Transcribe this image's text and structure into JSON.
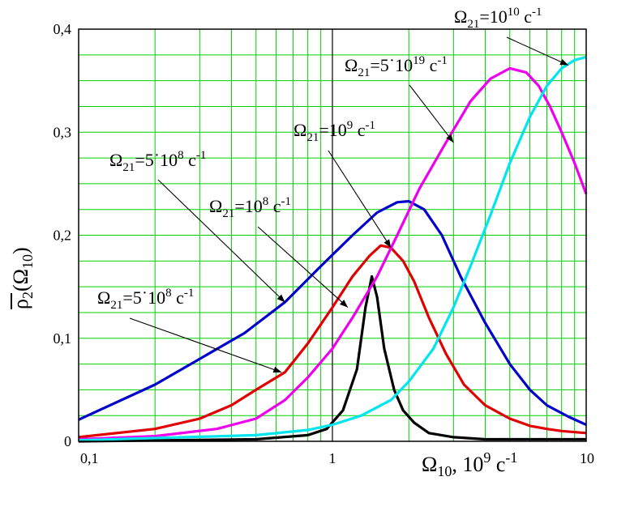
{
  "chart_data": {
    "type": "line",
    "x_scale": "log",
    "xlim": [
      0.1,
      10
    ],
    "ylim": [
      0,
      0.4
    ],
    "grid": true,
    "xlabel": {
      "main": "Ω",
      "sub": "10",
      "tail": ", 10",
      "sup": "9",
      "unit": " с",
      "unit_sup": "-1"
    },
    "ylabel": {
      "main": "ρ",
      "sub": "2",
      "arg_open": "(Ω",
      "arg_sub": "10",
      "arg_close": ")"
    },
    "x_tick_labels": [
      {
        "value": 0.1,
        "label": "0,1"
      },
      {
        "value": 1,
        "label": "1"
      },
      {
        "value": 10,
        "label": "10"
      }
    ],
    "y_tick_labels": [
      {
        "value": 0,
        "label": "0"
      },
      {
        "value": 0.1,
        "label": "0,1"
      },
      {
        "value": 0.2,
        "label": "0,2"
      },
      {
        "value": 0.3,
        "label": "0,3"
      },
      {
        "value": 0.4,
        "label": "0,4"
      }
    ],
    "series": [
      {
        "color": "#000000",
        "x": [
          0.1,
          0.5,
          0.8,
          0.95,
          1.1,
          1.25,
          1.35,
          1.43,
          1.5,
          1.6,
          1.75,
          1.9,
          2.1,
          2.4,
          3.0,
          4.0,
          10
        ],
        "y": [
          0,
          0.002,
          0.006,
          0.012,
          0.03,
          0.07,
          0.13,
          0.16,
          0.14,
          0.09,
          0.05,
          0.03,
          0.018,
          0.008,
          0.004,
          0.002,
          0.002
        ]
      },
      {
        "color": "#e00000",
        "x": [
          0.1,
          0.2,
          0.3,
          0.4,
          0.5,
          0.65,
          0.8,
          1.0,
          1.2,
          1.4,
          1.55,
          1.7,
          1.9,
          2.1,
          2.4,
          2.8,
          3.3,
          4.0,
          5.0,
          6.0,
          7.0,
          8.0,
          10
        ],
        "y": [
          0.004,
          0.012,
          0.022,
          0.035,
          0.05,
          0.067,
          0.095,
          0.13,
          0.16,
          0.18,
          0.19,
          0.188,
          0.175,
          0.155,
          0.12,
          0.085,
          0.055,
          0.035,
          0.022,
          0.015,
          0.012,
          0.01,
          0.008
        ]
      },
      {
        "color": "#0000cc",
        "x": [
          0.1,
          0.2,
          0.3,
          0.45,
          0.65,
          0.9,
          1.2,
          1.5,
          1.8,
          2.0,
          2.3,
          2.7,
          3.2,
          4.0,
          5.0,
          6.0,
          7.0,
          8.5,
          10
        ],
        "y": [
          0.021,
          0.055,
          0.08,
          0.105,
          0.135,
          0.17,
          0.2,
          0.222,
          0.232,
          0.233,
          0.225,
          0.2,
          0.16,
          0.115,
          0.075,
          0.05,
          0.035,
          0.024,
          0.016
        ]
      },
      {
        "color": "#ee00ee",
        "x": [
          0.1,
          0.2,
          0.35,
          0.5,
          0.65,
          0.8,
          1.0,
          1.2,
          1.5,
          1.8,
          2.2,
          2.8,
          3.5,
          4.2,
          5.0,
          5.8,
          6.5,
          7.2,
          8.0,
          9.0,
          10
        ],
        "y": [
          0.002,
          0.005,
          0.012,
          0.022,
          0.04,
          0.062,
          0.09,
          0.12,
          0.16,
          0.2,
          0.245,
          0.29,
          0.33,
          0.352,
          0.362,
          0.358,
          0.345,
          0.325,
          0.3,
          0.27,
          0.24
        ]
      },
      {
        "color": "#00e5ee",
        "x": [
          0.1,
          0.5,
          0.8,
          1.0,
          1.3,
          1.7,
          2.0,
          2.5,
          3.0,
          3.5,
          4.2,
          5.0,
          6.0,
          7.0,
          8.0,
          9.0,
          10
        ],
        "y": [
          0.001,
          0.006,
          0.011,
          0.016,
          0.025,
          0.04,
          0.058,
          0.09,
          0.13,
          0.17,
          0.22,
          0.27,
          0.315,
          0.345,
          0.362,
          0.37,
          0.373
        ]
      }
    ],
    "annotations": [
      {
        "text": {
          "main": "Ω",
          "sub": "21",
          "body": "=10",
          "sup": "10",
          "unit": " с",
          "unit_sup": "-1"
        },
        "target": [
          8.5,
          0.365
        ]
      },
      {
        "text": {
          "main": "Ω",
          "sub": "21",
          "body": "=5˙10",
          "sup": "19",
          "unit": " с",
          "unit_sup": "-1"
        },
        "target": [
          3.0,
          0.29
        ]
      },
      {
        "text": {
          "main": "Ω",
          "sub": "21",
          "body": "=10",
          "sup": "9",
          "unit": " с",
          "unit_sup": "-1"
        },
        "target": [
          1.7,
          0.188
        ]
      },
      {
        "text": {
          "main": "Ω",
          "sub": "21",
          "body": "=5˙10",
          "sup": "8",
          "unit": " с",
          "unit_sup": "-1"
        },
        "target": [
          0.65,
          0.135
        ]
      },
      {
        "text": {
          "main": "Ω",
          "sub": "21",
          "body": "=10",
          "sup": "8",
          "unit": " с",
          "unit_sup": "-1"
        },
        "target": [
          1.15,
          0.13
        ]
      },
      {
        "text": {
          "main": "Ω",
          "sub": "21",
          "body": "=5˙10",
          "sup": "8",
          "unit": " с",
          "unit_sup": "-1"
        },
        "target": [
          0.63,
          0.067
        ]
      }
    ]
  }
}
